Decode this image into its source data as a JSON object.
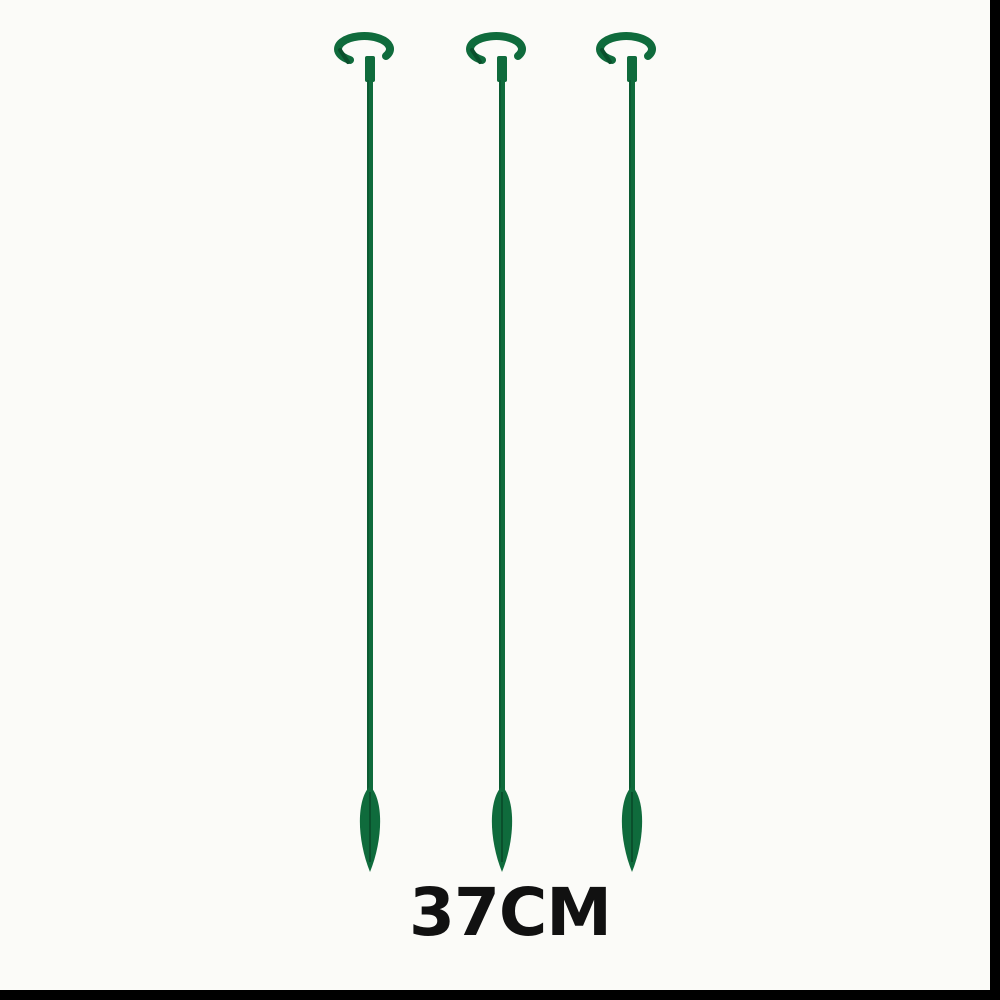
{
  "product": {
    "size_label": "37CM",
    "stake_count": 3,
    "stake_color": "#0f6b3c",
    "stake_shadow_color": "#0a4f2c",
    "background_color": "#fbfbf8"
  }
}
